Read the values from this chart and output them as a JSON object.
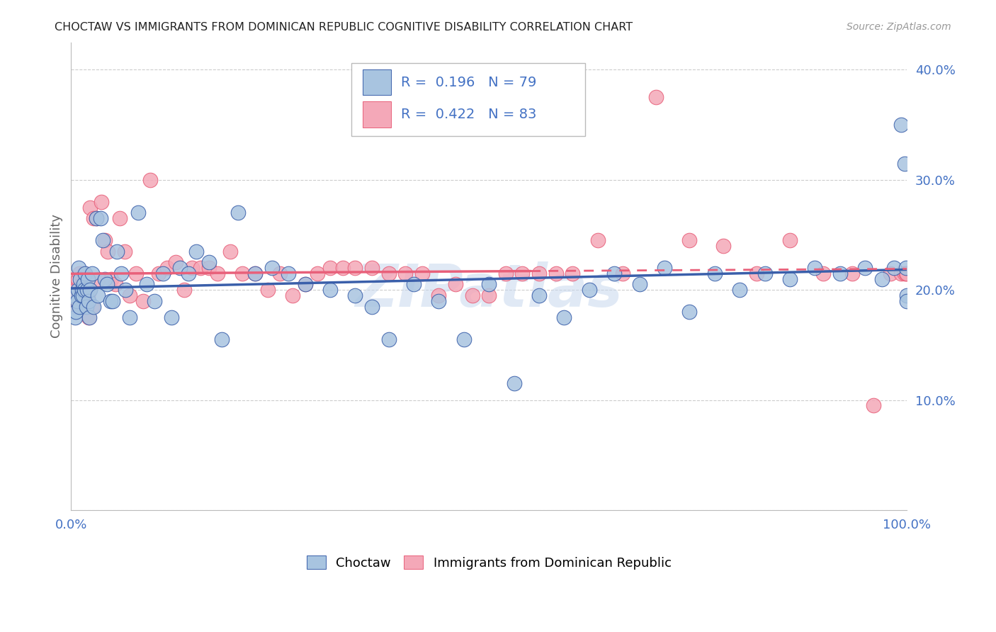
{
  "title": "CHOCTAW VS IMMIGRANTS FROM DOMINICAN REPUBLIC COGNITIVE DISABILITY CORRELATION CHART",
  "source": "Source: ZipAtlas.com",
  "ylabel": "Cognitive Disability",
  "xlim": [
    0,
    1.0
  ],
  "ylim": [
    0,
    0.425
  ],
  "yticks": [
    0.0,
    0.1,
    0.2,
    0.3,
    0.4
  ],
  "ytick_labels": [
    "",
    "10.0%",
    "20.0%",
    "30.0%",
    "40.0%"
  ],
  "xticks": [
    0.0,
    0.2,
    0.4,
    0.6,
    0.8,
    1.0
  ],
  "xtick_labels": [
    "0.0%",
    "",
    "",
    "",
    "",
    "100.0%"
  ],
  "choctaw_color": "#a8c4e0",
  "immigrant_color": "#f4a8b8",
  "choctaw_line_color": "#3a5faa",
  "immigrant_line_color": "#e8607a",
  "R_choctaw": "0.196",
  "N_choctaw": "79",
  "R_immigrant": "0.422",
  "N_immigrant": "83",
  "watermark": "ZIPatlas",
  "background_color": "#ffffff",
  "grid_color": "#cccccc",
  "title_color": "#222222",
  "axis_label_color": "#666666",
  "tick_color": "#4472c4",
  "choctaw_x": [
    0.003,
    0.005,
    0.006,
    0.007,
    0.008,
    0.009,
    0.01,
    0.011,
    0.012,
    0.013,
    0.014,
    0.015,
    0.016,
    0.017,
    0.018,
    0.019,
    0.02,
    0.021,
    0.022,
    0.023,
    0.025,
    0.027,
    0.03,
    0.032,
    0.035,
    0.038,
    0.04,
    0.043,
    0.047,
    0.05,
    0.055,
    0.06,
    0.065,
    0.07,
    0.08,
    0.09,
    0.1,
    0.11,
    0.12,
    0.13,
    0.14,
    0.15,
    0.165,
    0.18,
    0.2,
    0.22,
    0.24,
    0.26,
    0.28,
    0.31,
    0.34,
    0.36,
    0.38,
    0.41,
    0.44,
    0.47,
    0.5,
    0.53,
    0.56,
    0.59,
    0.62,
    0.65,
    0.68,
    0.71,
    0.74,
    0.77,
    0.8,
    0.83,
    0.86,
    0.89,
    0.92,
    0.95,
    0.97,
    0.985,
    0.993,
    0.997,
    0.999,
    0.9995,
    0.9999
  ],
  "choctaw_y": [
    0.195,
    0.175,
    0.18,
    0.19,
    0.2,
    0.22,
    0.185,
    0.21,
    0.195,
    0.2,
    0.195,
    0.205,
    0.2,
    0.215,
    0.185,
    0.2,
    0.21,
    0.19,
    0.175,
    0.2,
    0.215,
    0.185,
    0.265,
    0.195,
    0.265,
    0.245,
    0.21,
    0.205,
    0.19,
    0.19,
    0.235,
    0.215,
    0.2,
    0.175,
    0.27,
    0.205,
    0.19,
    0.215,
    0.175,
    0.22,
    0.215,
    0.235,
    0.225,
    0.155,
    0.27,
    0.215,
    0.22,
    0.215,
    0.205,
    0.2,
    0.195,
    0.185,
    0.155,
    0.205,
    0.19,
    0.155,
    0.205,
    0.115,
    0.195,
    0.175,
    0.2,
    0.215,
    0.205,
    0.22,
    0.18,
    0.215,
    0.2,
    0.215,
    0.21,
    0.22,
    0.215,
    0.22,
    0.21,
    0.22,
    0.35,
    0.315,
    0.22,
    0.195,
    0.19
  ],
  "immigrant_x": [
    0.002,
    0.004,
    0.005,
    0.006,
    0.007,
    0.008,
    0.009,
    0.01,
    0.011,
    0.012,
    0.013,
    0.014,
    0.015,
    0.016,
    0.017,
    0.018,
    0.019,
    0.02,
    0.021,
    0.022,
    0.023,
    0.025,
    0.027,
    0.03,
    0.033,
    0.036,
    0.04,
    0.044,
    0.048,
    0.053,
    0.058,
    0.064,
    0.07,
    0.078,
    0.086,
    0.095,
    0.105,
    0.115,
    0.125,
    0.135,
    0.145,
    0.155,
    0.165,
    0.175,
    0.19,
    0.205,
    0.22,
    0.235,
    0.25,
    0.265,
    0.28,
    0.295,
    0.31,
    0.325,
    0.34,
    0.36,
    0.38,
    0.4,
    0.42,
    0.44,
    0.46,
    0.48,
    0.5,
    0.52,
    0.54,
    0.56,
    0.58,
    0.6,
    0.63,
    0.66,
    0.7,
    0.74,
    0.78,
    0.82,
    0.86,
    0.9,
    0.935,
    0.96,
    0.98,
    0.993,
    0.997,
    0.999,
    0.9995
  ],
  "immigrant_y": [
    0.2,
    0.19,
    0.185,
    0.2,
    0.195,
    0.21,
    0.195,
    0.215,
    0.185,
    0.2,
    0.205,
    0.2,
    0.195,
    0.215,
    0.185,
    0.2,
    0.21,
    0.195,
    0.175,
    0.2,
    0.275,
    0.185,
    0.265,
    0.265,
    0.21,
    0.28,
    0.245,
    0.235,
    0.21,
    0.205,
    0.265,
    0.235,
    0.195,
    0.215,
    0.19,
    0.3,
    0.215,
    0.22,
    0.225,
    0.2,
    0.22,
    0.22,
    0.22,
    0.215,
    0.235,
    0.215,
    0.215,
    0.2,
    0.215,
    0.195,
    0.205,
    0.215,
    0.22,
    0.22,
    0.22,
    0.22,
    0.215,
    0.215,
    0.215,
    0.195,
    0.205,
    0.195,
    0.195,
    0.215,
    0.215,
    0.215,
    0.215,
    0.215,
    0.245,
    0.215,
    0.375,
    0.245,
    0.24,
    0.215,
    0.245,
    0.215,
    0.215,
    0.095,
    0.215,
    0.215,
    0.215,
    0.215,
    0.215
  ],
  "immigrant_line_solid_end": 0.55
}
